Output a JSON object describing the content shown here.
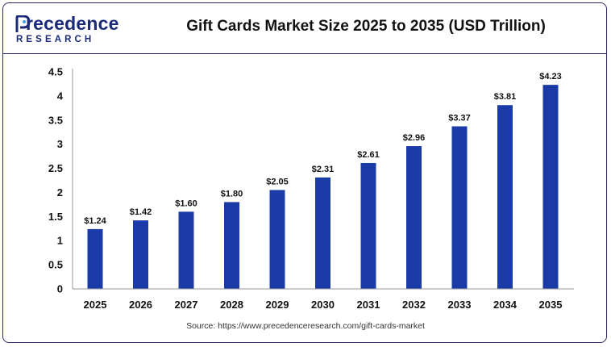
{
  "header": {
    "logo_brand": "recedence",
    "logo_sub": "RESEARCH",
    "title": "Gift Cards Market Size 2025 to 2035 (USD Trillion)"
  },
  "source": "Source: https://www.precedenceresearch.com/gift-cards-market",
  "colors": {
    "bar": "#1a3aa8",
    "frame": "#2b2b6b",
    "brand": "#1c2a7a"
  },
  "chart_data": {
    "type": "bar",
    "title": "Gift Cards Market Size 2025 to 2035 (USD Trillion)",
    "categories": [
      "2025",
      "2026",
      "2027",
      "2028",
      "2029",
      "2030",
      "2031",
      "2032",
      "2033",
      "2034",
      "2035"
    ],
    "values": [
      1.24,
      1.42,
      1.6,
      1.8,
      2.05,
      2.31,
      2.61,
      2.96,
      3.37,
      3.81,
      4.23
    ],
    "data_labels": [
      "$1.24",
      "$1.42",
      "$1.60",
      "$1.80",
      "$2.05",
      "$2.31",
      "$2.61",
      "$2.96",
      "$3.37",
      "$3.81",
      "$4.23"
    ],
    "yticks": [
      "0",
      "0.5",
      "1",
      "1.5",
      "2",
      "2.5",
      "3",
      "3.5",
      "4",
      "4.5"
    ],
    "ylim": [
      0,
      4.5
    ],
    "xlabel": "",
    "ylabel": "",
    "grid": false,
    "legend": "none"
  }
}
